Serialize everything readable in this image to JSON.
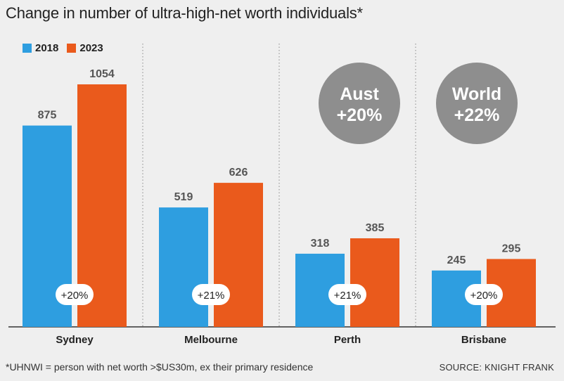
{
  "chart_data": {
    "type": "bar",
    "title": "Change in number of ultra-high-net worth individuals*",
    "categories": [
      "Sydney",
      "Melbourne",
      "Perth",
      "Brisbane"
    ],
    "series": [
      {
        "name": "2018",
        "color": "#2e9ee0",
        "values": [
          875,
          519,
          318,
          245
        ]
      },
      {
        "name": "2023",
        "color": "#ea5a1c",
        "values": [
          1054,
          626,
          385,
          295
        ]
      }
    ],
    "changes": [
      "+20%",
      "+21%",
      "+21%",
      "+20%"
    ],
    "ylim": [
      0,
      1100
    ],
    "legend_position": "top-left",
    "badges": [
      {
        "label": "Aust",
        "value": "+20%"
      },
      {
        "label": "World",
        "value": "+22%"
      }
    ],
    "badge_color": "#8e8e8e"
  },
  "footnote": "*UHNWI = person with net worth >$US30m, ex their primary residence",
  "source": "SOURCE: KNIGHT FRANK"
}
